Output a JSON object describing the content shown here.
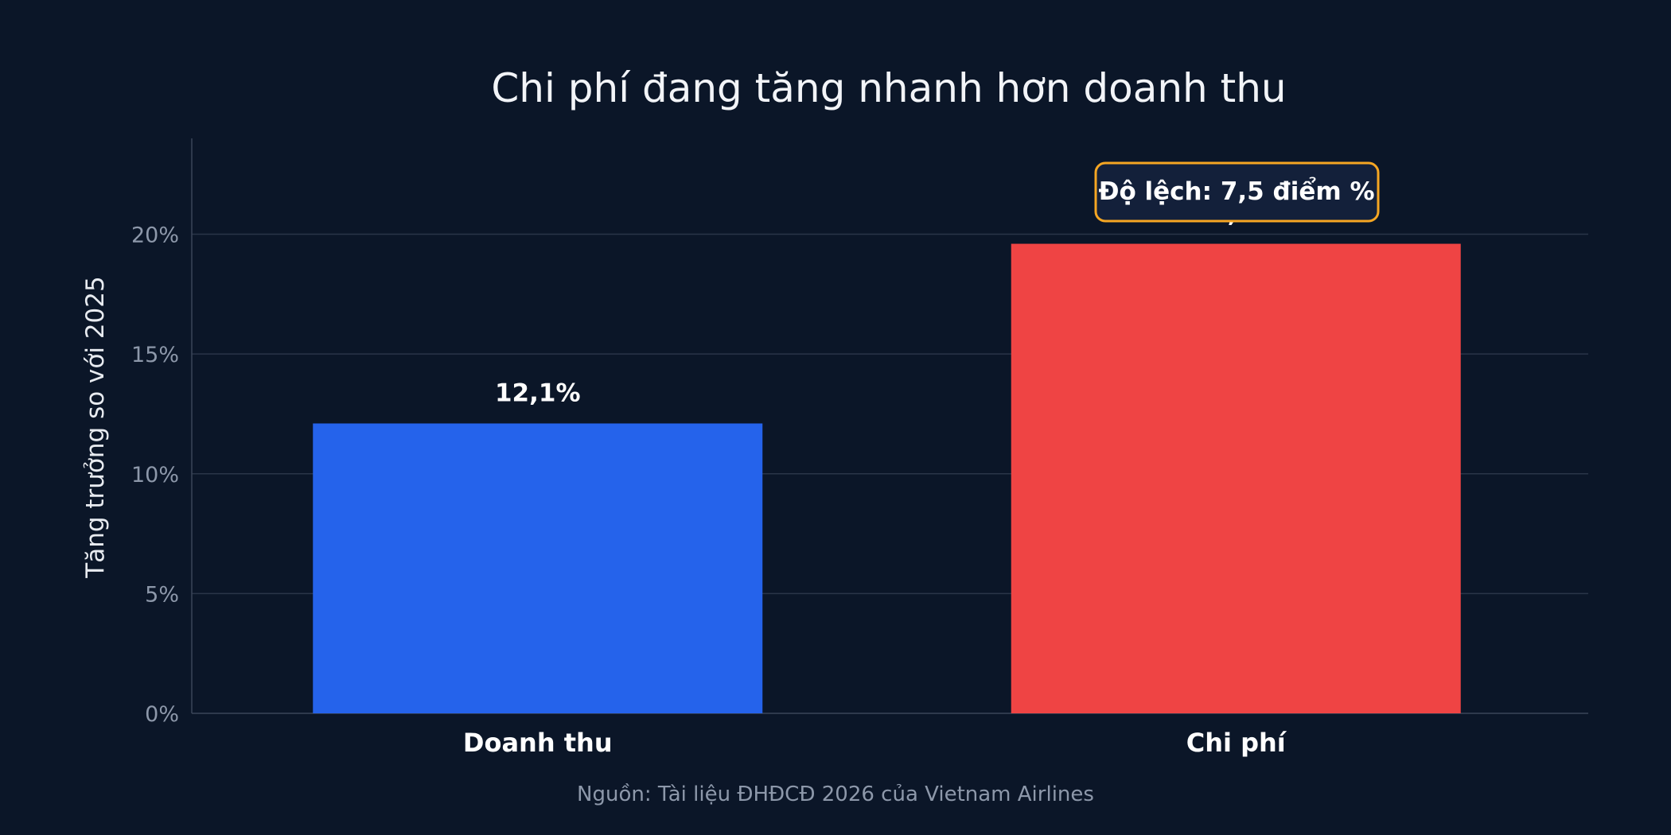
{
  "colors": {
    "background": "#0b1628",
    "grid": "#2a3548",
    "axis": "#3a4558",
    "tick_text": "#8d98aa",
    "title_text": "#f2f4f8",
    "label_text": "#ffffff",
    "source_text": "#8d98aa",
    "annotation_border": "#f5a623",
    "annotation_fill": "#13203a"
  },
  "chart_data": {
    "type": "bar",
    "title": "Chi phí đang tăng nhanh hơn doanh thu",
    "xlabel": "",
    "ylabel": "Tăng trưởng so với 2025",
    "categories": [
      "Doanh thu",
      "Chi phí"
    ],
    "values": [
      12.1,
      19.6
    ],
    "value_labels": [
      "12,1%",
      "19,6%"
    ],
    "bar_colors": [
      "#2563eb",
      "#ef4444"
    ],
    "ylim": [
      0,
      24
    ],
    "yticks": [
      0,
      5,
      10,
      15,
      20
    ],
    "ytick_labels": [
      "0%",
      "5%",
      "10%",
      "15%",
      "20%"
    ],
    "grid": true,
    "annotation": "Độ lệch: 7,5 điểm %",
    "source": "Nguồn: Tài liệu ĐHĐCĐ 2026 của Vietnam Airlines"
  }
}
